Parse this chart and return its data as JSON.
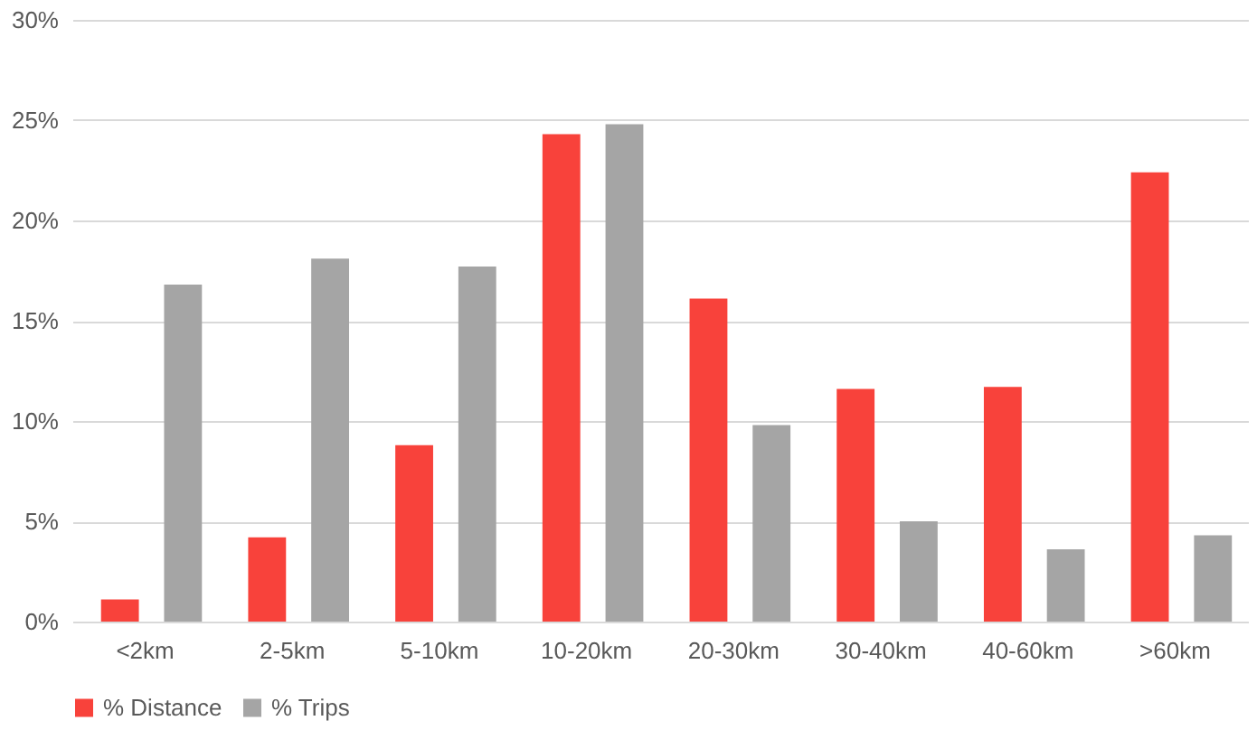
{
  "chart_data": {
    "type": "bar",
    "categories": [
      "<2km",
      "2-5km",
      "5-10km",
      "10-20km",
      "20-30km",
      "30-40km",
      "40-60km",
      ">60km"
    ],
    "series": [
      {
        "name": "% Distance",
        "color": "#f8423b",
        "values": [
          1.1,
          4.2,
          8.8,
          24.3,
          16.1,
          11.6,
          11.7,
          22.4
        ]
      },
      {
        "name": "% Trips",
        "color": "#a5a5a5",
        "values": [
          16.8,
          18.1,
          17.7,
          24.8,
          9.8,
          5.0,
          3.6,
          4.3
        ]
      }
    ],
    "ylim": [
      0,
      30
    ],
    "yticks": [
      {
        "value": 0,
        "label": "0%"
      },
      {
        "value": 5,
        "label": "5%"
      },
      {
        "value": 10,
        "label": "10%"
      },
      {
        "value": 15,
        "label": "15%"
      },
      {
        "value": 20,
        "label": "20%"
      },
      {
        "value": 25,
        "label": "25%"
      },
      {
        "value": 30,
        "label": "30%"
      }
    ],
    "grid": "y",
    "legend": "bottom"
  }
}
